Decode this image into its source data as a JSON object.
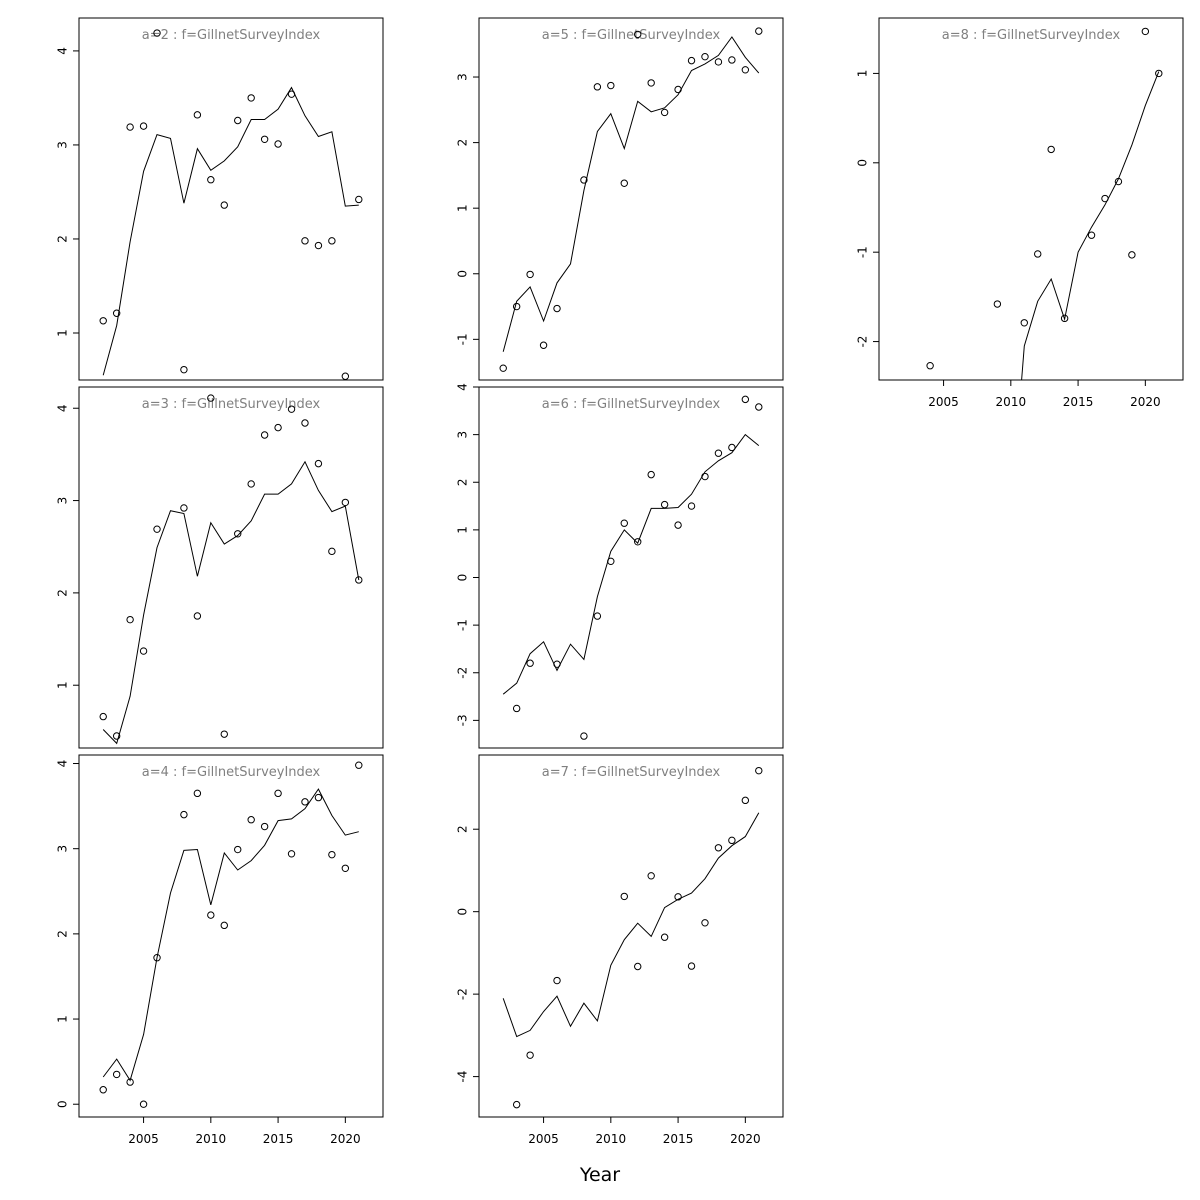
{
  "chart_data": {
    "type": "scatter",
    "xlabel": "Year",
    "grid": false,
    "panels": [
      {
        "label": "a=2  :  f=GillnetSurveyIndex",
        "xlim": [
          2000.2,
          2022.8
        ],
        "ylim": [
          0.5,
          4.35
        ],
        "xticks": [],
        "yticks": [
          1,
          2,
          3,
          4
        ],
        "observed": [
          [
            2002,
            1.13
          ],
          [
            2003,
            1.21
          ],
          [
            2004,
            3.19
          ],
          [
            2005,
            3.2
          ],
          [
            2006,
            4.19
          ],
          [
            2008,
            0.61
          ],
          [
            2009,
            3.32
          ],
          [
            2010,
            2.63
          ],
          [
            2011,
            2.36
          ],
          [
            2012,
            3.26
          ],
          [
            2013,
            3.5
          ],
          [
            2014,
            3.06
          ],
          [
            2015,
            3.01
          ],
          [
            2016,
            3.54
          ],
          [
            2017,
            1.98
          ],
          [
            2018,
            1.93
          ],
          [
            2019,
            1.98
          ],
          [
            2020,
            0.54
          ],
          [
            2021,
            2.42
          ]
        ],
        "fitted": [
          [
            2002,
            0.55
          ],
          [
            2003,
            1.08
          ],
          [
            2004,
            1.97
          ],
          [
            2005,
            2.72
          ],
          [
            2006,
            3.11
          ],
          [
            2007,
            3.07
          ],
          [
            2008,
            2.38
          ],
          [
            2009,
            2.96
          ],
          [
            2010,
            2.73
          ],
          [
            2011,
            2.83
          ],
          [
            2012,
            2.98
          ],
          [
            2013,
            3.27
          ],
          [
            2014,
            3.27
          ],
          [
            2015,
            3.38
          ],
          [
            2016,
            3.61
          ],
          [
            2017,
            3.31
          ],
          [
            2018,
            3.09
          ],
          [
            2019,
            3.14
          ],
          [
            2020,
            2.35
          ],
          [
            2021,
            2.36
          ]
        ]
      },
      {
        "label": "a=3  :  f=GillnetSurveyIndex",
        "xlim": [
          2000.2,
          2022.8
        ],
        "ylim": [
          0.32,
          4.23
        ],
        "xticks": [],
        "yticks": [
          1,
          2,
          3,
          4
        ],
        "observed": [
          [
            2002,
            0.66
          ],
          [
            2003,
            0.45
          ],
          [
            2004,
            1.71
          ],
          [
            2005,
            1.37
          ],
          [
            2006,
            2.69
          ],
          [
            2008,
            2.92
          ],
          [
            2009,
            1.75
          ],
          [
            2010,
            4.11
          ],
          [
            2011,
            0.47
          ],
          [
            2012,
            2.64
          ],
          [
            2013,
            3.18
          ],
          [
            2014,
            3.71
          ],
          [
            2015,
            3.79
          ],
          [
            2016,
            3.99
          ],
          [
            2017,
            3.84
          ],
          [
            2018,
            3.4
          ],
          [
            2019,
            2.45
          ],
          [
            2020,
            2.98
          ],
          [
            2021,
            2.14
          ]
        ],
        "fitted": [
          [
            2002,
            0.52
          ],
          [
            2003,
            0.37
          ],
          [
            2004,
            0.88
          ],
          [
            2005,
            1.76
          ],
          [
            2006,
            2.49
          ],
          [
            2007,
            2.89
          ],
          [
            2008,
            2.86
          ],
          [
            2009,
            2.18
          ],
          [
            2010,
            2.76
          ],
          [
            2011,
            2.53
          ],
          [
            2012,
            2.62
          ],
          [
            2013,
            2.78
          ],
          [
            2014,
            3.07
          ],
          [
            2015,
            3.07
          ],
          [
            2016,
            3.18
          ],
          [
            2017,
            3.42
          ],
          [
            2018,
            3.11
          ],
          [
            2019,
            2.88
          ],
          [
            2020,
            2.94
          ],
          [
            2021,
            2.14
          ]
        ]
      },
      {
        "label": "a=4  :  f=GillnetSurveyIndex",
        "xlim": [
          2000.2,
          2022.8
        ],
        "ylim": [
          -0.15,
          4.1
        ],
        "xticks": [
          2005,
          2010,
          2015,
          2020
        ],
        "yticks": [
          0,
          1,
          2,
          3,
          4
        ],
        "observed": [
          [
            2002,
            0.17
          ],
          [
            2003,
            0.35
          ],
          [
            2004,
            0.26
          ],
          [
            2005,
            0.0
          ],
          [
            2006,
            1.72
          ],
          [
            2008,
            3.4
          ],
          [
            2009,
            3.65
          ],
          [
            2010,
            2.22
          ],
          [
            2011,
            2.1
          ],
          [
            2012,
            2.99
          ],
          [
            2013,
            3.34
          ],
          [
            2014,
            3.26
          ],
          [
            2015,
            3.65
          ],
          [
            2016,
            2.94
          ],
          [
            2017,
            3.55
          ],
          [
            2018,
            3.6
          ],
          [
            2019,
            2.93
          ],
          [
            2020,
            2.77
          ],
          [
            2021,
            3.98
          ]
        ],
        "fitted": [
          [
            2002,
            0.32
          ],
          [
            2003,
            0.53
          ],
          [
            2004,
            0.28
          ],
          [
            2005,
            0.82
          ],
          [
            2006,
            1.72
          ],
          [
            2007,
            2.48
          ],
          [
            2008,
            2.98
          ],
          [
            2009,
            2.99
          ],
          [
            2010,
            2.34
          ],
          [
            2011,
            2.95
          ],
          [
            2012,
            2.75
          ],
          [
            2013,
            2.86
          ],
          [
            2014,
            3.04
          ],
          [
            2015,
            3.33
          ],
          [
            2016,
            3.35
          ],
          [
            2017,
            3.47
          ],
          [
            2018,
            3.7
          ],
          [
            2019,
            3.39
          ],
          [
            2020,
            3.16
          ],
          [
            2021,
            3.2
          ]
        ]
      },
      {
        "label": "a=5  :  f=GillnetSurveyIndex",
        "xlim": [
          2000.2,
          2022.8
        ],
        "ylim": [
          -1.62,
          3.9
        ],
        "xticks": [],
        "yticks": [
          -1,
          0,
          1,
          2,
          3
        ],
        "observed": [
          [
            2002,
            -1.44
          ],
          [
            2003,
            -0.5
          ],
          [
            2004,
            -0.01
          ],
          [
            2005,
            -1.09
          ],
          [
            2006,
            -0.53
          ],
          [
            2008,
            1.43
          ],
          [
            2009,
            2.85
          ],
          [
            2010,
            2.87
          ],
          [
            2011,
            1.38
          ],
          [
            2012,
            3.65
          ],
          [
            2013,
            2.91
          ],
          [
            2014,
            2.46
          ],
          [
            2015,
            2.81
          ],
          [
            2016,
            3.25
          ],
          [
            2017,
            3.31
          ],
          [
            2018,
            3.23
          ],
          [
            2019,
            3.26
          ],
          [
            2020,
            3.11
          ],
          [
            2021,
            3.7
          ]
        ],
        "fitted": [
          [
            2002,
            -1.19
          ],
          [
            2003,
            -0.42
          ],
          [
            2004,
            -0.2
          ],
          [
            2005,
            -0.72
          ],
          [
            2006,
            -0.14
          ],
          [
            2007,
            0.15
          ],
          [
            2008,
            1.27
          ],
          [
            2009,
            2.17
          ],
          [
            2010,
            2.44
          ],
          [
            2011,
            1.91
          ],
          [
            2012,
            2.63
          ],
          [
            2013,
            2.47
          ],
          [
            2014,
            2.53
          ],
          [
            2015,
            2.73
          ],
          [
            2016,
            3.1
          ],
          [
            2017,
            3.2
          ],
          [
            2018,
            3.33
          ],
          [
            2019,
            3.61
          ],
          [
            2020,
            3.3
          ],
          [
            2021,
            3.06
          ]
        ]
      },
      {
        "label": "a=6  :  f=GillnetSurveyIndex",
        "xlim": [
          2000.2,
          2022.8
        ],
        "ylim": [
          -3.58,
          4.0
        ],
        "xticks": [],
        "yticks": [
          -3,
          -2,
          -1,
          0,
          1,
          2,
          3,
          4
        ],
        "observed": [
          [
            2003,
            -2.75
          ],
          [
            2004,
            -1.8
          ],
          [
            2006,
            -1.82
          ],
          [
            2008,
            -3.33
          ],
          [
            2009,
            -0.81
          ],
          [
            2010,
            0.34
          ],
          [
            2011,
            1.14
          ],
          [
            2012,
            0.75
          ],
          [
            2013,
            2.16
          ],
          [
            2014,
            1.53
          ],
          [
            2015,
            1.1
          ],
          [
            2016,
            1.5
          ],
          [
            2017,
            2.12
          ],
          [
            2018,
            2.61
          ],
          [
            2019,
            2.73
          ],
          [
            2020,
            3.74
          ],
          [
            2021,
            3.58
          ]
        ],
        "fitted": [
          [
            2002,
            -2.45
          ],
          [
            2003,
            -2.22
          ],
          [
            2004,
            -1.6
          ],
          [
            2005,
            -1.35
          ],
          [
            2006,
            -1.95
          ],
          [
            2007,
            -1.4
          ],
          [
            2008,
            -1.72
          ],
          [
            2009,
            -0.4
          ],
          [
            2010,
            0.55
          ],
          [
            2011,
            1.0
          ],
          [
            2012,
            0.72
          ],
          [
            2013,
            1.45
          ],
          [
            2014,
            1.45
          ],
          [
            2015,
            1.47
          ],
          [
            2016,
            1.75
          ],
          [
            2017,
            2.22
          ],
          [
            2018,
            2.45
          ],
          [
            2019,
            2.62
          ],
          [
            2020,
            3.0
          ],
          [
            2021,
            2.77
          ]
        ]
      },
      {
        "label": "a=7  :  f=GillnetSurveyIndex",
        "xlim": [
          2000.2,
          2022.8
        ],
        "ylim": [
          -4.98,
          3.8
        ],
        "xticks": [
          2005,
          2010,
          2015,
          2020
        ],
        "yticks": [
          -4,
          -2,
          0,
          2
        ],
        "observed": [
          [
            2003,
            -4.68
          ],
          [
            2004,
            -3.48
          ],
          [
            2006,
            -1.67
          ],
          [
            2011,
            0.37
          ],
          [
            2012,
            -1.33
          ],
          [
            2013,
            0.87
          ],
          [
            2014,
            -0.62
          ],
          [
            2015,
            0.36
          ],
          [
            2016,
            -1.32
          ],
          [
            2017,
            -0.27
          ],
          [
            2018,
            1.55
          ],
          [
            2019,
            1.73
          ],
          [
            2020,
            2.7
          ],
          [
            2021,
            3.42
          ]
        ],
        "fitted": [
          [
            2002,
            -2.1
          ],
          [
            2003,
            -3.03
          ],
          [
            2004,
            -2.88
          ],
          [
            2005,
            -2.42
          ],
          [
            2006,
            -2.05
          ],
          [
            2007,
            -2.78
          ],
          [
            2008,
            -2.22
          ],
          [
            2009,
            -2.65
          ],
          [
            2010,
            -1.3
          ],
          [
            2011,
            -0.68
          ],
          [
            2012,
            -0.28
          ],
          [
            2013,
            -0.6
          ],
          [
            2014,
            0.1
          ],
          [
            2015,
            0.3
          ],
          [
            2016,
            0.45
          ],
          [
            2017,
            0.8
          ],
          [
            2018,
            1.3
          ],
          [
            2019,
            1.6
          ],
          [
            2020,
            1.82
          ],
          [
            2021,
            2.4
          ]
        ]
      },
      {
        "label": "a=8  :  f=GillnetSurveyIndex",
        "xlim": [
          2000.2,
          2022.8
        ],
        "ylim": [
          -2.43,
          1.62
        ],
        "xticks": [
          2005,
          2010,
          2015,
          2020
        ],
        "yticks": [
          -2,
          -1,
          0,
          1
        ],
        "observed": [
          [
            2004,
            -2.27
          ],
          [
            2009,
            -1.58
          ],
          [
            2011,
            -1.79
          ],
          [
            2012,
            -1.02
          ],
          [
            2013,
            0.15
          ],
          [
            2014,
            -1.74
          ],
          [
            2016,
            -0.81
          ],
          [
            2017,
            -0.4
          ],
          [
            2018,
            -0.21
          ],
          [
            2019,
            -1.03
          ],
          [
            2020,
            1.47
          ],
          [
            2021,
            1.0
          ]
        ],
        "fitted": [
          [
            2010.8,
            -2.43
          ],
          [
            2011,
            -2.05
          ],
          [
            2012,
            -1.55
          ],
          [
            2013,
            -1.3
          ],
          [
            2014,
            -1.75
          ],
          [
            2015,
            -1.0
          ],
          [
            2016,
            -0.72
          ],
          [
            2017,
            -0.47
          ],
          [
            2018,
            -0.18
          ],
          [
            2019,
            0.2
          ],
          [
            2020,
            0.64
          ],
          [
            2021,
            1.02
          ]
        ]
      }
    ]
  }
}
